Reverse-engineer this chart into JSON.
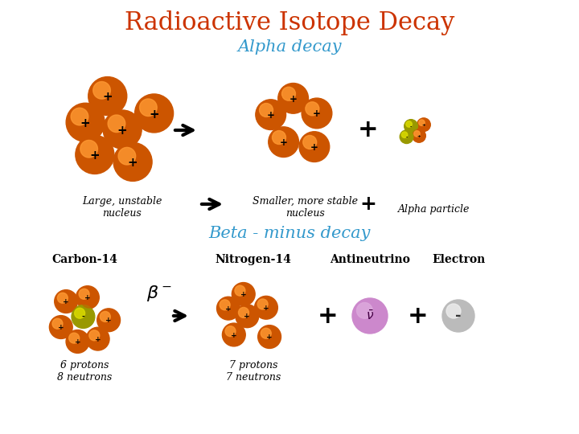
{
  "title": "Radioactive Isotope Decay",
  "title_color": "#cc3300",
  "title_fontsize": 22,
  "alpha_label": "Alpha decay",
  "alpha_label_color": "#3399cc",
  "alpha_label_fontsize": 15,
  "beta_label": "Beta - minus decay",
  "beta_label_color": "#3399cc",
  "beta_label_fontsize": 15,
  "bg_color": "#ffffff",
  "alpha_text1": "Large, unstable\nnucleus",
  "alpha_text2": "Smaller, more stable\nnucleus",
  "alpha_text3": "Alpha particle",
  "beta_carbon_label": "Carbon-14",
  "beta_nitrogen_label": "Nitrogen-14",
  "beta_antineutrino_label": "Antineutrino",
  "beta_electron_label": "Electron",
  "beta_carbon_sub": "6 protons\n8 neutrons",
  "beta_nitrogen_sub": "7 protons\n7 neutrons",
  "proton_color": "#cc5500",
  "proton_highlight": "#ff9933",
  "neutron_color": "#999900",
  "neutron_highlight": "#dddd00",
  "antineutrino_color": "#cc88cc",
  "antineutrino_highlight": "#ddaadd",
  "electron_color": "#bbbbbb",
  "electron_highlight": "#eeeeee",
  "label_fontsize": 9,
  "sublabel_fontsize": 9,
  "label_font": "DejaVu Serif"
}
